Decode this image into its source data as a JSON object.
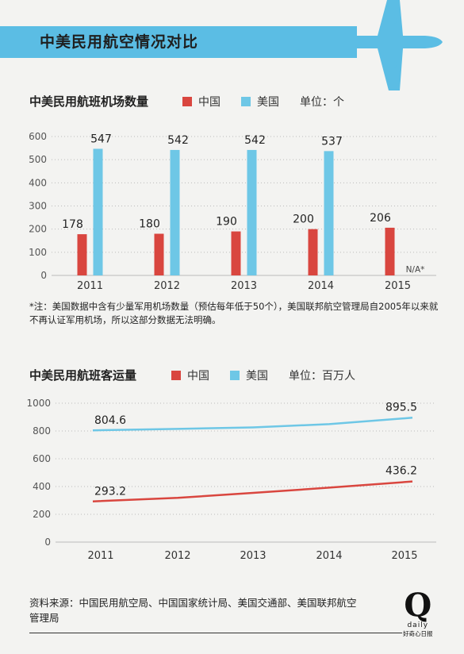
{
  "banner": {
    "title": "中美民用航空情况对比"
  },
  "colors": {
    "china": "#d9463f",
    "usa": "#6ec7e6",
    "banner": "#5bbde4",
    "axis": "#bbbbbb"
  },
  "chart_data": [
    {
      "type": "bar",
      "title": "中美民用航班机场数量",
      "unit_label": "单位：个",
      "categories": [
        "2011",
        "2012",
        "2013",
        "2014",
        "2015"
      ],
      "series": [
        {
          "name": "中国",
          "values": [
            178,
            180,
            190,
            200,
            206
          ],
          "labels": [
            "178",
            "180",
            "190",
            "200",
            "206"
          ]
        },
        {
          "name": "美国",
          "values": [
            547,
            542,
            542,
            537,
            null
          ],
          "labels": [
            "547",
            "542",
            "542",
            "537",
            "N/A*"
          ]
        }
      ],
      "ylim": [
        0,
        600
      ],
      "yticks": [
        0,
        100,
        200,
        300,
        400,
        500,
        600
      ],
      "grid": true
    },
    {
      "type": "line",
      "title": "中美民用航班客运量",
      "unit_label": "单位：百万人",
      "categories": [
        "2011",
        "2012",
        "2013",
        "2014",
        "2015"
      ],
      "series": [
        {
          "name": "中国",
          "values": [
            293.2,
            318.5,
            354,
            391.95,
            436.2
          ],
          "start_label": "293.2",
          "end_label": "436.2"
        },
        {
          "name": "美国",
          "values": [
            804.6,
            815,
            826,
            849,
            895.5
          ],
          "start_label": "804.6",
          "end_label": "895.5"
        }
      ],
      "ylim": [
        0,
        1000
      ],
      "yticks": [
        0,
        200,
        400,
        600,
        800,
        1000
      ],
      "grid": true
    }
  ],
  "footnote": "*注：美国数据中含有少量军用机场数量（预估每年低于50个），美国联邦航空管理局自2005年以来就不再认证军用机场，所以这部分数据无法明确。",
  "source": "资料来源：中国民用航空局、中国国家统计局、美国交通部、美国联邦航空管理局",
  "logo": {
    "letter": "Q",
    "word": "daily",
    "cn": "好奇心日报"
  }
}
